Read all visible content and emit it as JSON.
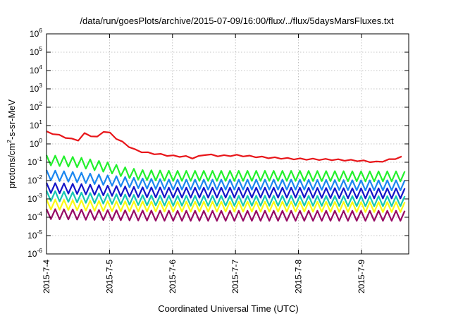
{
  "chart_data": {
    "type": "line",
    "title": "/data/run/goesPlots/archive/2015-07-09/16:00/flux/../flux/5daysMarsFluxes.txt",
    "xlabel": "Coordinated Universal Time (UTC)",
    "ylabel_parts": [
      "protons/cm",
      "2",
      "-s-sr-MeV"
    ],
    "y_scale": "log",
    "ylim": [
      1e-06,
      1000000.0
    ],
    "xlim": [
      "2015-07-04T00:00",
      "2015-07-09T18:00"
    ],
    "x_ticks": [
      "2015-7-4",
      "2015-7-5",
      "2015-7-6",
      "2015-7-7",
      "2015-7-8",
      "2015-7-9"
    ],
    "y_ticks": [
      {
        "base": "10",
        "exp": "-6"
      },
      {
        "base": "10",
        "exp": "-5"
      },
      {
        "base": "10",
        "exp": "-4"
      },
      {
        "base": "10",
        "exp": "-3"
      },
      {
        "base": "10",
        "exp": "-2"
      },
      {
        "base": "10",
        "exp": "-1"
      },
      {
        "base": "10",
        "exp": "0"
      },
      {
        "base": "10",
        "exp": "1"
      },
      {
        "base": "10",
        "exp": "2"
      },
      {
        "base": "10",
        "exp": "3"
      },
      {
        "base": "10",
        "exp": "4"
      },
      {
        "base": "10",
        "exp": "5"
      },
      {
        "base": "10",
        "exp": "6"
      }
    ],
    "grid": true,
    "series": [
      {
        "color": "#e8161a",
        "points": [
          [
            "2015-07-04T00:00",
            4.5
          ],
          [
            "2015-07-04T03:00",
            3.5
          ],
          [
            "2015-07-04T06:00",
            2.6
          ],
          [
            "2015-07-04T09:00",
            1.9
          ],
          [
            "2015-07-04T12:00",
            1.5
          ],
          [
            "2015-07-04T13:00",
            4.3
          ],
          [
            "2015-07-04T16:00",
            3.0
          ],
          [
            "2015-07-04T20:00",
            2.2
          ],
          [
            "2015-07-04T22:00",
            5.5
          ],
          [
            "2015-07-05T00:00",
            4.0
          ],
          [
            "2015-07-05T03:00",
            1.8
          ],
          [
            "2015-07-05T06:00",
            1.0
          ],
          [
            "2015-07-05T09:00",
            0.5
          ],
          [
            "2015-07-05T13:00",
            0.35
          ],
          [
            "2015-07-05T18:00",
            0.28
          ],
          [
            "2015-07-06T00:00",
            0.22
          ],
          [
            "2015-07-06T06:00",
            0.2
          ],
          [
            "2015-07-06T09:00",
            0.15
          ],
          [
            "2015-07-06T11:00",
            0.28
          ],
          [
            "2015-07-06T18:00",
            0.22
          ],
          [
            "2015-07-07T00:00",
            0.24
          ],
          [
            "2015-07-07T12:00",
            0.18
          ],
          [
            "2015-07-08T00:00",
            0.15
          ],
          [
            "2015-07-08T12:00",
            0.14
          ],
          [
            "2015-07-09T00:00",
            0.12
          ],
          [
            "2015-07-09T06:00",
            0.1
          ],
          [
            "2015-07-09T12:00",
            0.15
          ],
          [
            "2015-07-09T16:00",
            0.2
          ],
          [
            "2015-07-09T17:30",
            0.3
          ]
        ]
      },
      {
        "color": "#22f02c",
        "points": [
          [
            "2015-07-04T00:00",
            0.13
          ],
          [
            "2015-07-04T12:00",
            0.1
          ],
          [
            "2015-07-05T00:00",
            0.05
          ],
          [
            "2015-07-05T06:00",
            0.028
          ],
          [
            "2015-07-05T12:00",
            0.02
          ],
          [
            "2015-07-06T00:00",
            0.018
          ],
          [
            "2015-07-07T00:00",
            0.018
          ],
          [
            "2015-07-08T00:00",
            0.018
          ],
          [
            "2015-07-09T00:00",
            0.017
          ],
          [
            "2015-07-09T18:00",
            0.017
          ]
        ]
      },
      {
        "color": "#1a86f0",
        "points": [
          [
            "2015-07-04T00:00",
            0.02
          ],
          [
            "2015-07-04T12:00",
            0.015
          ],
          [
            "2015-07-05T00:00",
            0.01
          ],
          [
            "2015-07-05T12:00",
            0.007
          ],
          [
            "2015-07-06T00:00",
            0.006
          ],
          [
            "2015-07-07T00:00",
            0.006
          ],
          [
            "2015-07-08T00:00",
            0.006
          ],
          [
            "2015-07-09T00:00",
            0.0055
          ],
          [
            "2015-07-09T18:00",
            0.0055
          ]
        ]
      },
      {
        "color": "#1414c8",
        "points": [
          [
            "2015-07-04T00:00",
            0.004
          ],
          [
            "2015-07-04T12:00",
            0.0035
          ],
          [
            "2015-07-05T00:00",
            0.0028
          ],
          [
            "2015-07-05T12:00",
            0.0023
          ],
          [
            "2015-07-06T00:00",
            0.0022
          ],
          [
            "2015-07-07T00:00",
            0.0022
          ],
          [
            "2015-07-08T00:00",
            0.0022
          ],
          [
            "2015-07-09T00:00",
            0.002
          ],
          [
            "2015-07-09T18:00",
            0.002
          ]
        ]
      },
      {
        "color": "#16c8b4",
        "points": [
          [
            "2015-07-04T00:00",
            0.0015
          ],
          [
            "2015-07-04T12:00",
            0.0012
          ],
          [
            "2015-07-05T00:00",
            0.001
          ],
          [
            "2015-07-05T12:00",
            0.00085
          ],
          [
            "2015-07-06T00:00",
            0.0008
          ],
          [
            "2015-07-07T00:00",
            0.0008
          ],
          [
            "2015-07-08T00:00",
            0.0008
          ],
          [
            "2015-07-09T00:00",
            0.00075
          ],
          [
            "2015-07-09T18:00",
            0.00075
          ]
        ]
      },
      {
        "color": "#fafa14",
        "points": [
          [
            "2015-07-04T00:00",
            0.0005
          ],
          [
            "2015-07-04T12:00",
            0.00045
          ],
          [
            "2015-07-05T00:00",
            0.0004
          ],
          [
            "2015-07-06T00:00",
            0.00038
          ],
          [
            "2015-07-07T00:00",
            0.00038
          ],
          [
            "2015-07-08T00:00",
            0.00038
          ],
          [
            "2015-07-09T00:00",
            0.00036
          ],
          [
            "2015-07-09T18:00",
            0.00036
          ]
        ]
      },
      {
        "color": "#960a64",
        "points": [
          [
            "2015-07-04T00:00",
            0.00015
          ],
          [
            "2015-07-04T12:00",
            0.00014
          ],
          [
            "2015-07-05T00:00",
            0.00013
          ],
          [
            "2015-07-06T00:00",
            0.00012
          ],
          [
            "2015-07-07T00:00",
            0.00012
          ],
          [
            "2015-07-08T00:00",
            0.00012
          ],
          [
            "2015-07-09T00:00",
            0.00012
          ],
          [
            "2015-07-09T18:00",
            0.00012
          ]
        ]
      }
    ]
  }
}
